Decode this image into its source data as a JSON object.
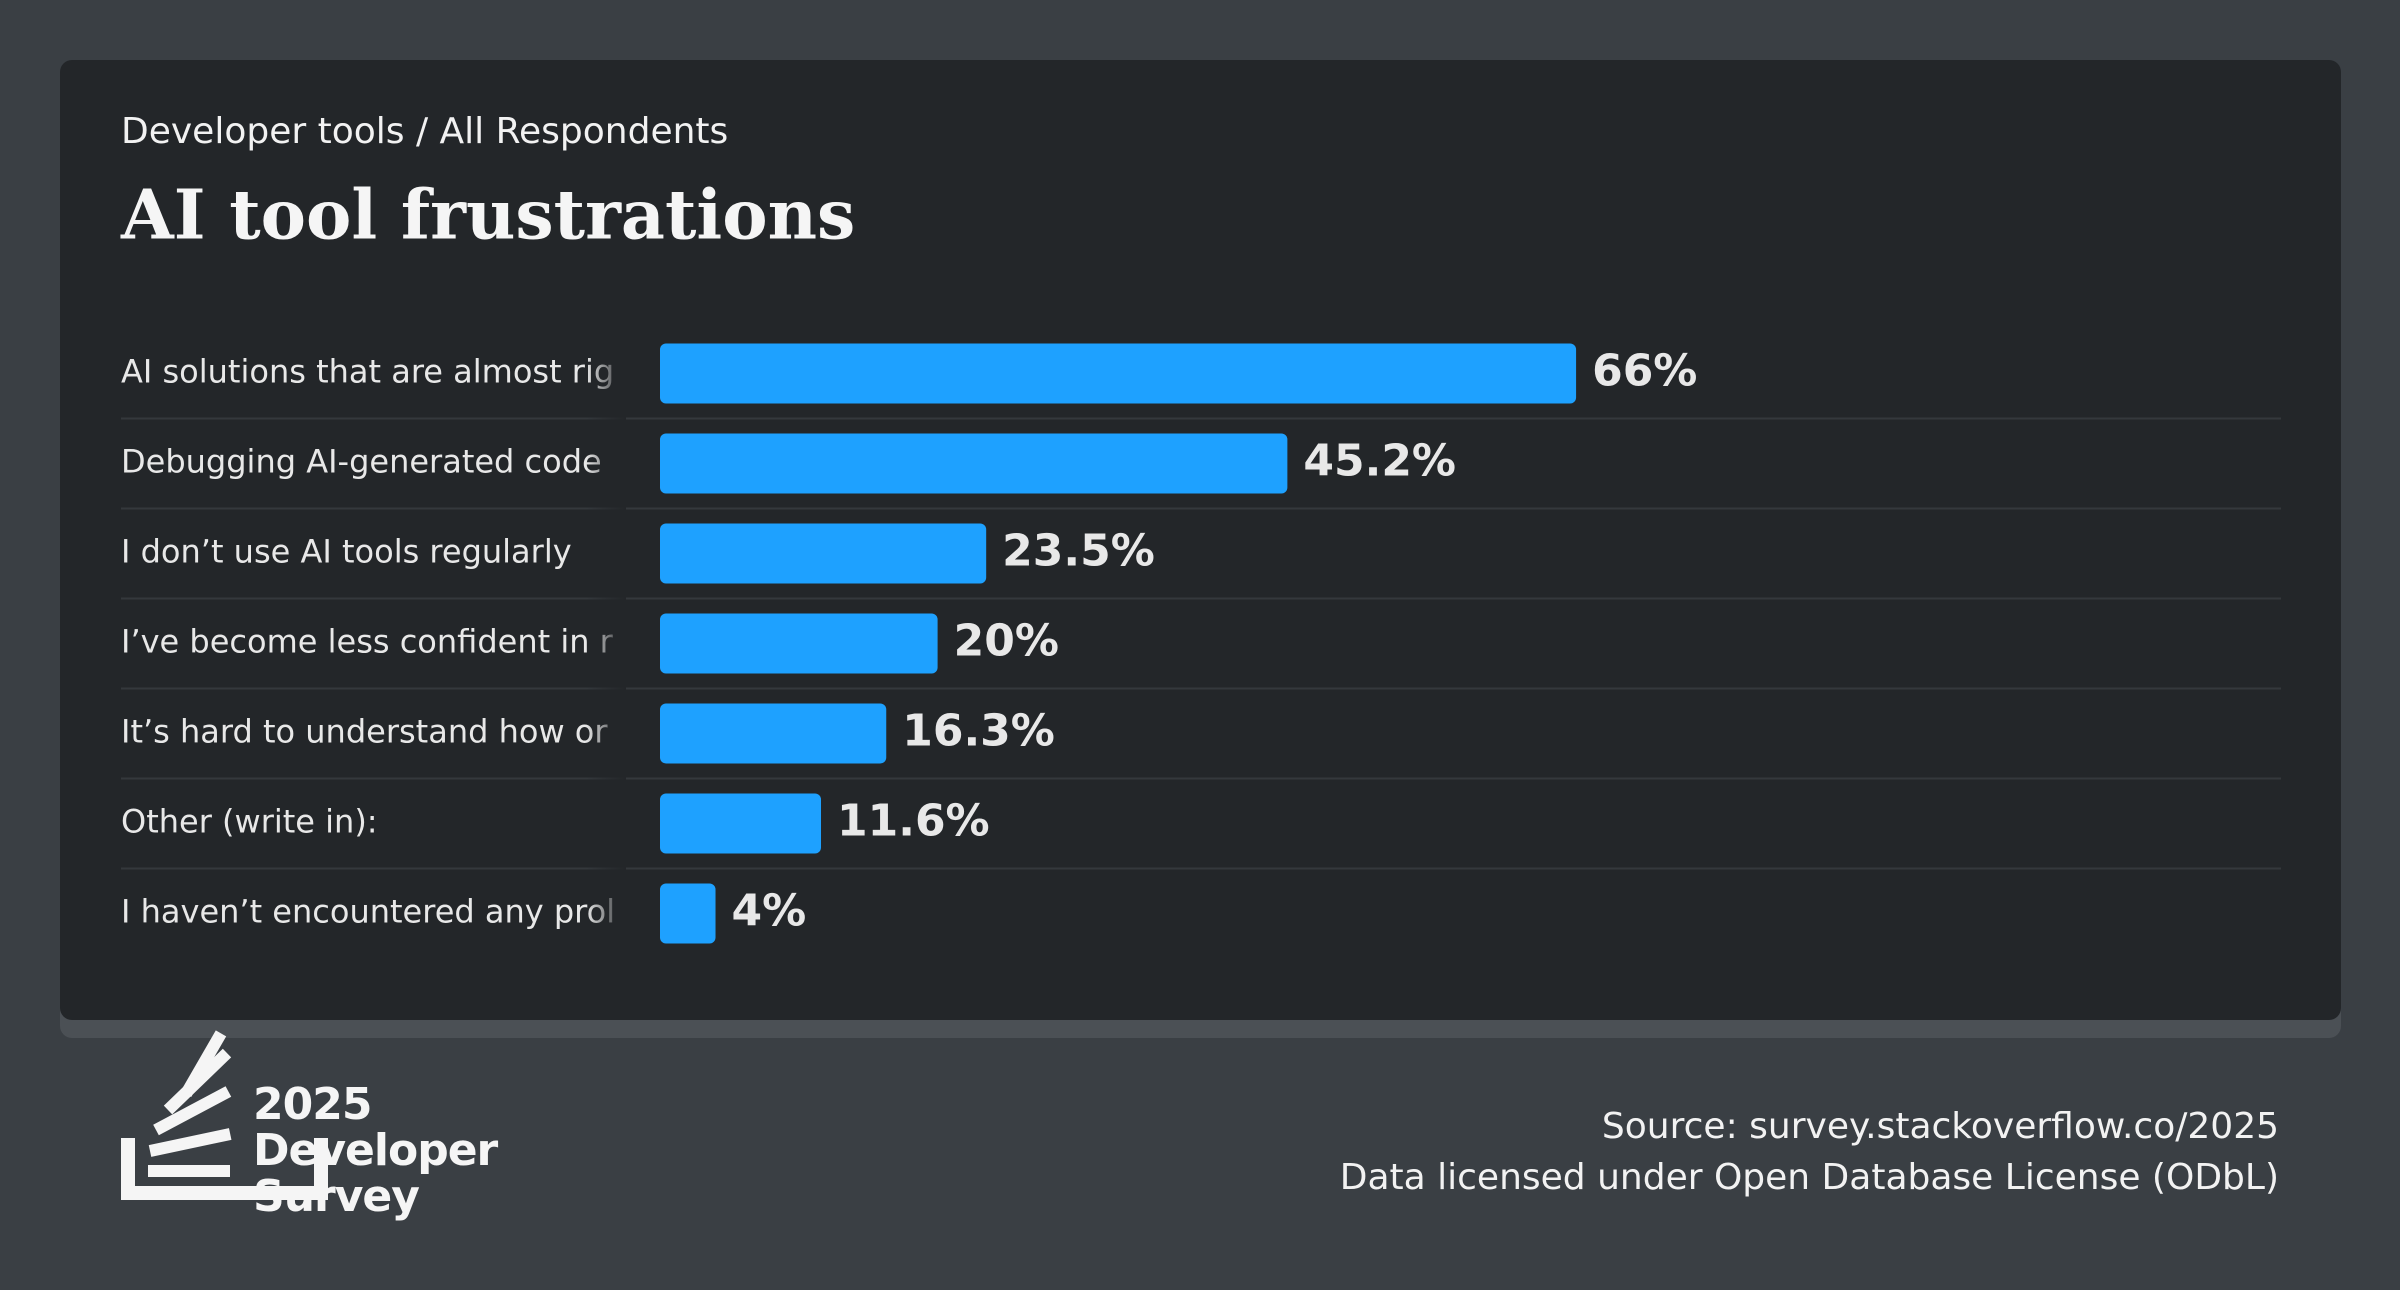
{
  "chart_data": {
    "type": "bar",
    "orientation": "horizontal",
    "subtitle": "Developer tools / All Respondents",
    "title": "AI tool frustrations",
    "categories": [
      "AI solutions that are almost rig",
      "Debugging AI-generated code",
      "I don’t use AI tools regularly",
      "I’ve become less confident in r",
      "It’s hard to understand how or",
      "Other (write in):",
      "I haven’t encountered any prol"
    ],
    "values": [
      66,
      45.2,
      23.5,
      20,
      16.3,
      11.6,
      4
    ],
    "value_labels": [
      "66%",
      "45.2%",
      "23.5%",
      "20%",
      "16.3%",
      "11.6%",
      "4%"
    ],
    "color": "#1ea1ff",
    "source": "Source: survey.stackoverflow.co/2025",
    "license": "Data licensed under Open Database License (ODbL)"
  },
  "brand": {
    "year": "2025",
    "line1": "Developer",
    "line2": "Survey"
  }
}
